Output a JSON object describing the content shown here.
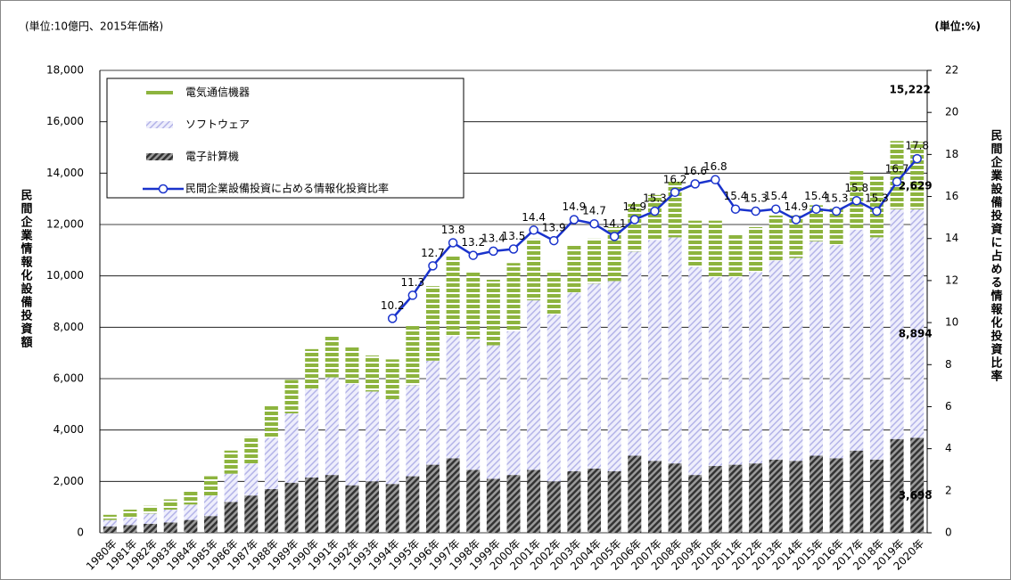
{
  "chart_data": {
    "type": "stacked_bar_line",
    "unit_left": "(単位:10億円、2015年価格)",
    "unit_right": "(単位:%)",
    "ylabel": "民間企業情報化設備投資額",
    "y2label": "民間企業設備投資に占める情報化投資比率",
    "categories": [
      "1980年",
      "1981年",
      "1982年",
      "1983年",
      "1984年",
      "1985年",
      "1986年",
      "1987年",
      "1988年",
      "1989年",
      "1990年",
      "1991年",
      "1992年",
      "1993年",
      "1994年",
      "1995年",
      "1996年",
      "1997年",
      "1998年",
      "1999年",
      "2000年",
      "2001年",
      "2002年",
      "2003年",
      "2004年",
      "2005年",
      "2006年",
      "2007年",
      "2008年",
      "2009年",
      "2010年",
      "2011年",
      "2012年",
      "2013年",
      "2014年",
      "2015年",
      "2016年",
      "2017年",
      "2018年",
      "2019年",
      "2020年"
    ],
    "series": [
      {
        "name": "電子計算機",
        "color": "#4d4d4d",
        "values": [
          250,
          300,
          350,
          400,
          500,
          650,
          1200,
          1450,
          1700,
          1950,
          2150,
          2250,
          1850,
          2000,
          1900,
          2200,
          2650,
          2900,
          2450,
          2100,
          2250,
          2450,
          2000,
          2400,
          2500,
          2400,
          3000,
          2800,
          2700,
          2250,
          2600,
          2650,
          2700,
          2850,
          2800,
          3000,
          2900,
          3200,
          2850,
          3650,
          3698
        ],
        "value_labels": [
          null,
          null,
          null,
          null,
          null,
          null,
          null,
          null,
          null,
          null,
          null,
          null,
          null,
          null,
          null,
          null,
          null,
          null,
          null,
          null,
          null,
          null,
          null,
          null,
          null,
          null,
          null,
          null,
          null,
          null,
          null,
          null,
          null,
          null,
          null,
          null,
          null,
          null,
          null,
          null,
          "3,698"
        ]
      },
      {
        "name": "ソフトウェア",
        "color": "#c4c4f0",
        "values": [
          250,
          300,
          400,
          500,
          600,
          800,
          1100,
          1250,
          2000,
          2700,
          3450,
          3800,
          3950,
          3500,
          3300,
          3550,
          4050,
          4750,
          5100,
          5200,
          5600,
          6600,
          6500,
          6950,
          7200,
          7400,
          7950,
          8600,
          8800,
          8100,
          7350,
          7300,
          7450,
          7750,
          7900,
          8350,
          8300,
          8600,
          8650,
          8950,
          8894
        ],
        "value_labels": [
          null,
          null,
          null,
          null,
          null,
          null,
          null,
          null,
          null,
          null,
          null,
          null,
          null,
          null,
          null,
          null,
          null,
          null,
          null,
          null,
          null,
          null,
          null,
          null,
          null,
          null,
          null,
          null,
          null,
          null,
          null,
          null,
          null,
          null,
          null,
          null,
          null,
          null,
          null,
          null,
          "8,894"
        ]
      },
      {
        "name": "電気通信機器",
        "color": "#8db43e",
        "values": [
          200,
          300,
          300,
          400,
          550,
          750,
          900,
          1050,
          1250,
          1300,
          1550,
          1600,
          1450,
          1400,
          1550,
          2300,
          2900,
          3150,
          2600,
          2550,
          2650,
          2400,
          1700,
          1850,
          1750,
          2100,
          1850,
          1750,
          2200,
          1800,
          2200,
          1650,
          1750,
          1750,
          1650,
          1400,
          1450,
          2300,
          2400,
          2650,
          2629
        ],
        "value_labels": [
          null,
          null,
          null,
          null,
          null,
          null,
          null,
          null,
          null,
          null,
          null,
          null,
          null,
          null,
          null,
          null,
          null,
          null,
          null,
          null,
          null,
          null,
          null,
          null,
          null,
          null,
          null,
          null,
          null,
          null,
          null,
          null,
          null,
          null,
          null,
          null,
          null,
          null,
          null,
          null,
          "2,629"
        ]
      },
      {
        "name": "民間企業設備投資に占める情報化投資比率",
        "color": "#1a33cc",
        "axis": "y2",
        "values": [
          null,
          null,
          null,
          null,
          null,
          null,
          null,
          null,
          null,
          null,
          null,
          null,
          null,
          null,
          10.2,
          11.3,
          12.7,
          13.8,
          13.2,
          13.4,
          13.5,
          14.4,
          13.9,
          14.9,
          14.7,
          14.1,
          14.9,
          15.3,
          16.2,
          16.6,
          16.8,
          15.4,
          15.3,
          15.4,
          14.9,
          15.4,
          15.3,
          15.8,
          15.3,
          16.7,
          17.8
        ]
      }
    ],
    "total_annotation": {
      "value": 15222,
      "label": "15,222"
    },
    "ylim": [
      0,
      18000
    ],
    "yticks": [
      0,
      {
        "value": 2000,
        "label": "2,000"
      },
      {
        "value": 4000,
        "label": "4,000"
      },
      {
        "value": 6000,
        "label": "6,000"
      },
      {
        "value": 8000,
        "label": "8,000"
      },
      {
        "value": 10000,
        "label": "10,000"
      },
      {
        "value": 12000,
        "label": "12,000"
      },
      {
        "value": 14000,
        "label": "14,000"
      },
      {
        "value": 16000,
        "label": "16,000"
      },
      {
        "value": 18000,
        "label": "18,000"
      }
    ],
    "y2lim": [
      0,
      22
    ],
    "y2ticks": [
      0,
      2,
      4,
      6,
      8,
      10,
      12,
      14,
      16,
      18,
      20,
      22
    ],
    "grid": true
  }
}
